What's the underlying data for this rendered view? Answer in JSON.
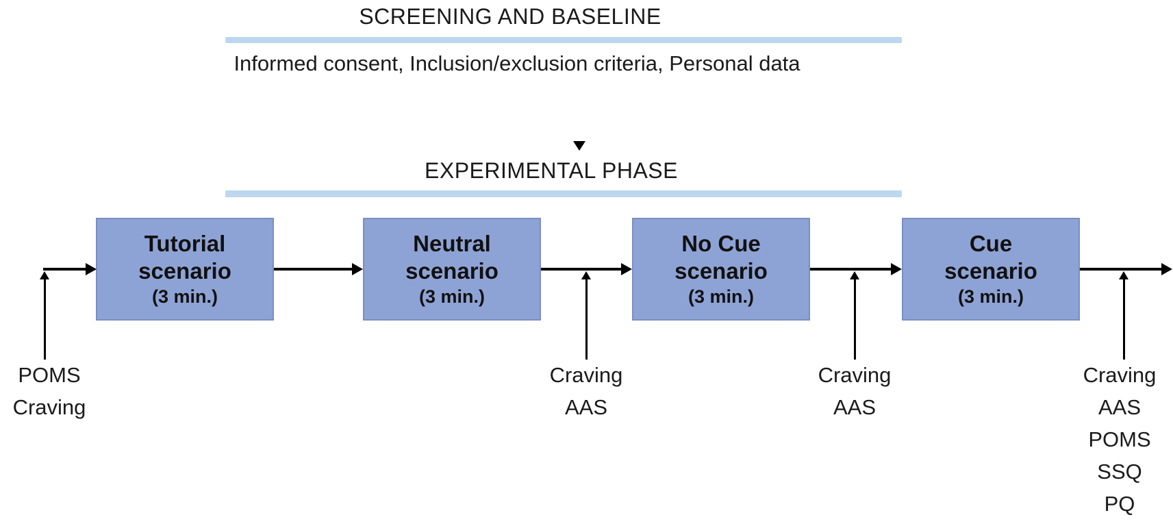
{
  "screening": {
    "title": "SCREENING AND BASELINE",
    "description": "Informed consent, Inclusion/exclusion criteria, Personal data"
  },
  "experimental": {
    "title": "EXPERIMENTAL PHASE"
  },
  "boxes": [
    {
      "line1": "Tutorial",
      "line2": "scenario",
      "duration": "(3 min.)"
    },
    {
      "line1": "Neutral",
      "line2": "scenario",
      "duration": "(3 min.)"
    },
    {
      "line1": "No Cue",
      "line2": "scenario",
      "duration": "(3 min.)"
    },
    {
      "line1": "Cue",
      "line2": "scenario",
      "duration": "(3 min.)"
    }
  ],
  "measures": [
    {
      "items": [
        "POMS",
        "Craving"
      ]
    },
    {
      "items": [
        "Craving",
        "AAS"
      ]
    },
    {
      "items": [
        "Craving",
        "AAS"
      ]
    },
    {
      "items": [
        "Craving",
        "AAS",
        "POMS",
        "SSQ",
        "PQ"
      ]
    }
  ],
  "colors": {
    "box_fill": "#8EA3D5",
    "box_border": "#7A8EC2",
    "divider": "#BDD7EE",
    "arrow": "#000000",
    "text": "#1a1a1a"
  }
}
